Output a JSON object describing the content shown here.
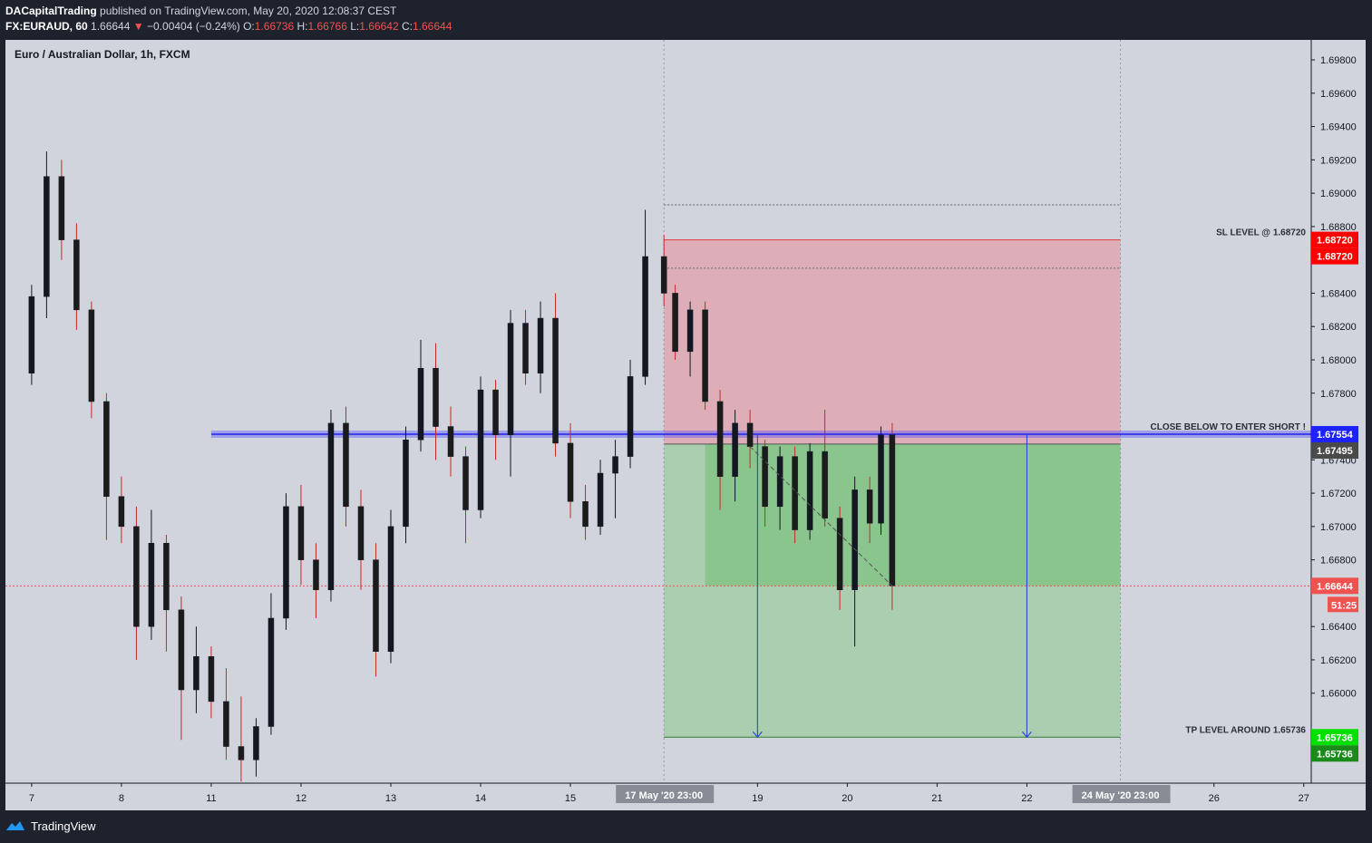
{
  "header": {
    "publisher": "DACapitalTrading",
    "published_text": "published on TradingView.com, May 20, 2020 12:08:37 CEST",
    "symbol": "FX:EURAUD, 60",
    "last": "1.66644",
    "change_arrow": "▼",
    "change": "−0.00404 (−0.24%)",
    "o_label": "O:",
    "o_value": "1.66736",
    "h_label": "H:",
    "h_value": "1.66766",
    "l_label": "L:",
    "l_value": "1.66642",
    "c_label": "C:",
    "c_value": "1.66644"
  },
  "footer": {
    "brand": "TradingView",
    "logo_icon": "tradingview-logo-icon"
  },
  "chart_data": {
    "type": "candlestick",
    "title": "Euro / Australian Dollar, 1h, FXCM",
    "ylim": [
      1.6546,
      1.6992
    ],
    "y_ticks": [
      "1.69800",
      "1.69600",
      "1.69400",
      "1.69200",
      "1.69000",
      "1.68800",
      "1.68400",
      "1.68200",
      "1.68000",
      "1.67800",
      "1.67400",
      "1.67200",
      "1.67000",
      "1.66800",
      "1.66400",
      "1.66200",
      "1.66000"
    ],
    "x_ticks": [
      "7",
      "8",
      "11",
      "12",
      "13",
      "14",
      "15",
      "19",
      "20",
      "21",
      "22",
      "26",
      "27"
    ],
    "x_tick_dates": [
      "May 7",
      "May 8",
      "May 11",
      "May 12",
      "May 13",
      "May 14",
      "May 15",
      "May 19",
      "May 20",
      "May 21",
      "May 22",
      "May 26",
      "May 27"
    ],
    "x_range": [
      "May 6 17:00",
      "May 27 02:00"
    ],
    "x_markers": [
      {
        "date": "May 17 23:00",
        "label": "17 May '20   23:00"
      },
      {
        "date": "May 24 23:00",
        "label": "24 May '20   23:00"
      }
    ],
    "price_labels": [
      {
        "value": 1.6872,
        "text": "1.68720",
        "color": "#ff0000"
      },
      {
        "value": 1.6872,
        "text": "1.68720",
        "color": "#ff0000"
      },
      {
        "value": 1.67554,
        "text": "1.67554",
        "color": "#1e22ff"
      },
      {
        "value": 1.67495,
        "text": "1.67495",
        "color": "#4a4a4a"
      },
      {
        "value": 1.66644,
        "text": "1.66644",
        "color": "#ef5350"
      },
      {
        "value": 1.65736,
        "text": "1.65736",
        "color": "#00e000"
      },
      {
        "value": 1.65736,
        "text": "1.65736",
        "color": "#1a8a1a"
      }
    ],
    "countdown": "51:25",
    "annotations": [
      {
        "text": "SL LEVEL @ 1.68720",
        "price": 1.6872
      },
      {
        "text": "CLOSE BELOW TO ENTER SHORT !",
        "price": 1.67554
      },
      {
        "text": "TP LEVEL AROUND 1.65736",
        "price": 1.65736
      }
    ],
    "current_price": 1.66644,
    "entry_level": 1.67554,
    "position": {
      "entry": 1.67495,
      "stop": 1.6872,
      "target": 1.65736,
      "start": "May 17 23:00",
      "end": "May 24 23:00"
    },
    "dotted_levels": [
      1.6893,
      1.6855
    ],
    "series": [
      {
        "name": "EURAUD",
        "points": [
          {
            "date": "May 7 00:00",
            "o": 1.6792,
            "h": 1.6845,
            "l": 1.6785,
            "c": 1.6838
          },
          {
            "date": "May 7 04:00",
            "o": 1.6838,
            "h": 1.6925,
            "l": 1.6825,
            "c": 1.691
          },
          {
            "date": "May 7 08:00",
            "o": 1.691,
            "h": 1.692,
            "l": 1.686,
            "c": 1.6872
          },
          {
            "date": "May 7 12:00",
            "o": 1.6872,
            "h": 1.6882,
            "l": 1.6818,
            "c": 1.683
          },
          {
            "date": "May 7 16:00",
            "o": 1.683,
            "h": 1.6835,
            "l": 1.6765,
            "c": 1.6775
          },
          {
            "date": "May 7 20:00",
            "o": 1.6775,
            "h": 1.678,
            "l": 1.6692,
            "c": 1.6718
          },
          {
            "date": "May 8 00:00",
            "o": 1.6718,
            "h": 1.673,
            "l": 1.669,
            "c": 1.67
          },
          {
            "date": "May 8 04:00",
            "o": 1.67,
            "h": 1.6712,
            "l": 1.662,
            "c": 1.664
          },
          {
            "date": "May 8 08:00",
            "o": 1.664,
            "h": 1.671,
            "l": 1.6632,
            "c": 1.669
          },
          {
            "date": "May 8 12:00",
            "o": 1.669,
            "h": 1.6695,
            "l": 1.6625,
            "c": 1.665
          },
          {
            "date": "May 8 16:00",
            "o": 1.665,
            "h": 1.6658,
            "l": 1.6572,
            "c": 1.6602
          },
          {
            "date": "May 8 20:00",
            "o": 1.6602,
            "h": 1.664,
            "l": 1.6588,
            "c": 1.6622
          },
          {
            "date": "May 11 00:00",
            "o": 1.6622,
            "h": 1.6628,
            "l": 1.6585,
            "c": 1.6595
          },
          {
            "date": "May 11 04:00",
            "o": 1.6595,
            "h": 1.6615,
            "l": 1.656,
            "c": 1.6568
          },
          {
            "date": "May 11 08:00",
            "o": 1.6568,
            "h": 1.6598,
            "l": 1.6547,
            "c": 1.656
          },
          {
            "date": "May 11 12:00",
            "o": 1.656,
            "h": 1.6585,
            "l": 1.655,
            "c": 1.658
          },
          {
            "date": "May 11 16:00",
            "o": 1.658,
            "h": 1.666,
            "l": 1.6575,
            "c": 1.6645
          },
          {
            "date": "May 11 20:00",
            "o": 1.6645,
            "h": 1.672,
            "l": 1.6638,
            "c": 1.6712
          },
          {
            "date": "May 12 00:00",
            "o": 1.6712,
            "h": 1.6725,
            "l": 1.6665,
            "c": 1.668
          },
          {
            "date": "May 12 04:00",
            "o": 1.668,
            "h": 1.669,
            "l": 1.6645,
            "c": 1.6662
          },
          {
            "date": "May 12 08:00",
            "o": 1.6662,
            "h": 1.677,
            "l": 1.6655,
            "c": 1.6762
          },
          {
            "date": "May 12 12:00",
            "o": 1.6762,
            "h": 1.6772,
            "l": 1.67,
            "c": 1.6712
          },
          {
            "date": "May 12 16:00",
            "o": 1.6712,
            "h": 1.6722,
            "l": 1.6662,
            "c": 1.668
          },
          {
            "date": "May 12 20:00",
            "o": 1.668,
            "h": 1.669,
            "l": 1.661,
            "c": 1.6625
          },
          {
            "date": "May 13 00:00",
            "o": 1.6625,
            "h": 1.671,
            "l": 1.6618,
            "c": 1.67
          },
          {
            "date": "May 13 04:00",
            "o": 1.67,
            "h": 1.676,
            "l": 1.669,
            "c": 1.6752
          },
          {
            "date": "May 13 08:00",
            "o": 1.6752,
            "h": 1.6812,
            "l": 1.6745,
            "c": 1.6795
          },
          {
            "date": "May 13 12:00",
            "o": 1.6795,
            "h": 1.681,
            "l": 1.674,
            "c": 1.676
          },
          {
            "date": "May 13 16:00",
            "o": 1.676,
            "h": 1.6772,
            "l": 1.673,
            "c": 1.6742
          },
          {
            "date": "May 13 20:00",
            "o": 1.6742,
            "h": 1.6748,
            "l": 1.669,
            "c": 1.671
          },
          {
            "date": "May 14 00:00",
            "o": 1.671,
            "h": 1.679,
            "l": 1.6705,
            "c": 1.6782
          },
          {
            "date": "May 14 04:00",
            "o": 1.6782,
            "h": 1.6788,
            "l": 1.674,
            "c": 1.6755
          },
          {
            "date": "May 14 08:00",
            "o": 1.6755,
            "h": 1.683,
            "l": 1.673,
            "c": 1.6822
          },
          {
            "date": "May 14 12:00",
            "o": 1.6822,
            "h": 1.683,
            "l": 1.6785,
            "c": 1.6792
          },
          {
            "date": "May 14 16:00",
            "o": 1.6792,
            "h": 1.6835,
            "l": 1.678,
            "c": 1.6825
          },
          {
            "date": "May 14 20:00",
            "o": 1.6825,
            "h": 1.684,
            "l": 1.6742,
            "c": 1.675
          },
          {
            "date": "May 15 00:00",
            "o": 1.675,
            "h": 1.6762,
            "l": 1.6705,
            "c": 1.6715
          },
          {
            "date": "May 15 04:00",
            "o": 1.6715,
            "h": 1.6725,
            "l": 1.6692,
            "c": 1.67
          },
          {
            "date": "May 15 08:00",
            "o": 1.67,
            "h": 1.674,
            "l": 1.6695,
            "c": 1.6732
          },
          {
            "date": "May 15 12:00",
            "o": 1.6732,
            "h": 1.6752,
            "l": 1.6705,
            "c": 1.6742
          },
          {
            "date": "May 15 16:00",
            "o": 1.6742,
            "h": 1.68,
            "l": 1.6735,
            "c": 1.679
          },
          {
            "date": "May 15 20:00",
            "o": 1.679,
            "h": 1.689,
            "l": 1.6785,
            "c": 1.6862
          },
          {
            "date": "May 17 23:00",
            "o": 1.6862,
            "h": 1.6875,
            "l": 1.6832,
            "c": 1.684
          },
          {
            "date": "May 18 02:00",
            "o": 1.684,
            "h": 1.6845,
            "l": 1.68,
            "c": 1.6805
          },
          {
            "date": "May 18 06:00",
            "o": 1.6805,
            "h": 1.6835,
            "l": 1.679,
            "c": 1.683
          },
          {
            "date": "May 18 10:00",
            "o": 1.683,
            "h": 1.6835,
            "l": 1.677,
            "c": 1.6775
          },
          {
            "date": "May 18 14:00",
            "o": 1.6775,
            "h": 1.6782,
            "l": 1.671,
            "c": 1.673
          },
          {
            "date": "May 18 18:00",
            "o": 1.673,
            "h": 1.677,
            "l": 1.6715,
            "c": 1.6762
          },
          {
            "date": "May 18 22:00",
            "o": 1.6762,
            "h": 1.677,
            "l": 1.6735,
            "c": 1.6748
          },
          {
            "date": "May 19 02:00",
            "o": 1.6748,
            "h": 1.6752,
            "l": 1.67,
            "c": 1.6712
          },
          {
            "date": "May 19 06:00",
            "o": 1.6712,
            "h": 1.6748,
            "l": 1.6698,
            "c": 1.6742
          },
          {
            "date": "May 19 10:00",
            "o": 1.6742,
            "h": 1.6748,
            "l": 1.669,
            "c": 1.6698
          },
          {
            "date": "May 19 14:00",
            "o": 1.6698,
            "h": 1.675,
            "l": 1.6692,
            "c": 1.6745
          },
          {
            "date": "May 19 18:00",
            "o": 1.6745,
            "h": 1.677,
            "l": 1.67,
            "c": 1.6705
          },
          {
            "date": "May 19 22:00",
            "o": 1.6705,
            "h": 1.6712,
            "l": 1.665,
            "c": 1.6662
          },
          {
            "date": "May 20 02:00",
            "o": 1.6662,
            "h": 1.673,
            "l": 1.6628,
            "c": 1.6722
          },
          {
            "date": "May 20 06:00",
            "o": 1.6722,
            "h": 1.673,
            "l": 1.669,
            "c": 1.6702
          },
          {
            "date": "May 20 09:00",
            "o": 1.6702,
            "h": 1.676,
            "l": 1.6695,
            "c": 1.6755
          },
          {
            "date": "May 20 12:00",
            "o": 1.6755,
            "h": 1.6762,
            "l": 1.665,
            "c": 1.66644
          }
        ]
      }
    ]
  }
}
